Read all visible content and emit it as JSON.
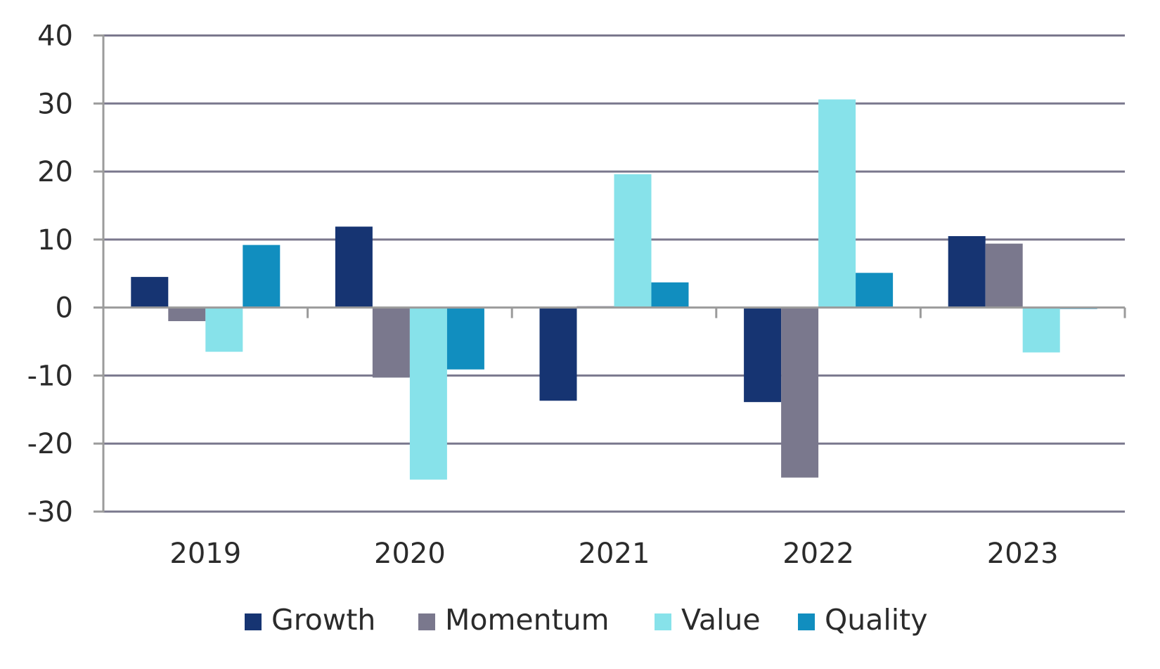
{
  "chart_data": {
    "type": "bar",
    "title": "",
    "xlabel": "",
    "ylabel": "",
    "categories": [
      "2019",
      "2020",
      "2021",
      "2022",
      "2023"
    ],
    "series": [
      {
        "name": "Growth",
        "color": "#163472",
        "values": [
          4.5,
          11.9,
          -13.7,
          -13.9,
          10.5
        ]
      },
      {
        "name": "Momentum",
        "color": "#7a788d",
        "values": [
          -2.0,
          -10.3,
          0.2,
          -25.0,
          9.4
        ]
      },
      {
        "name": "Value",
        "color": "#87e2ea",
        "values": [
          -6.5,
          -25.3,
          19.6,
          30.6,
          -6.6
        ]
      },
      {
        "name": "Quality",
        "color": "#118ebf",
        "values": [
          9.2,
          -9.1,
          3.7,
          5.1,
          -0.2
        ]
      }
    ],
    "ylim": [
      -30,
      40
    ],
    "yticks": [
      "40",
      "30",
      "20",
      "10",
      "0",
      "-10",
      "-20",
      "-30"
    ],
    "ytick_values": [
      40,
      30,
      20,
      10,
      0,
      -10,
      -20,
      -30
    ],
    "grid": true,
    "legend_position": "bottom",
    "colors": {
      "gridline": "#7a788d",
      "axis": "#9b9b9b",
      "text": "#2b2b2b"
    }
  }
}
